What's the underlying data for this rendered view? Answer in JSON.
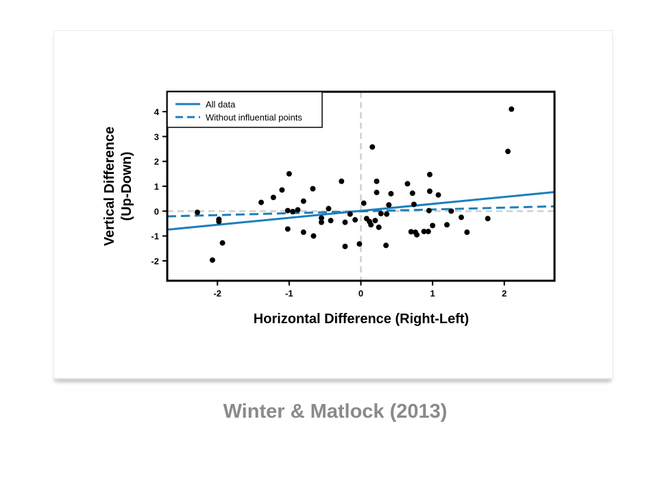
{
  "caption": "Winter & Matlock (2013)",
  "colors": {
    "line": "#1b7fbd",
    "points": "#000000",
    "reference": "#cfcfcf",
    "frame": "#000000",
    "caption": "#8a8a8a"
  },
  "chart_data": {
    "type": "scatter",
    "xlabel": "Horizontal Difference (Right-Left)",
    "ylabel_lines": [
      "Vertical Difference",
      "(Up-Down)"
    ],
    "xlim": [
      -2.7,
      2.7
    ],
    "ylim": [
      -2.8,
      4.8
    ],
    "xticks": [
      -2,
      -1,
      0,
      1,
      2
    ],
    "yticks": [
      -2,
      -1,
      0,
      1,
      2,
      3,
      4
    ],
    "xtick_labels": [
      "-2",
      "-1",
      "0",
      "1",
      "2"
    ],
    "ytick_labels": [
      "-2",
      "-1",
      "0",
      "1",
      "2",
      "3",
      "4"
    ],
    "reference_lines": {
      "x": 0,
      "y": 0,
      "style": "dashed"
    },
    "legend": {
      "position": "top-left",
      "entries": [
        {
          "label": "All data",
          "style": "solid"
        },
        {
          "label": "Without influential points",
          "style": "dashed"
        }
      ]
    },
    "fits": [
      {
        "name": "All data",
        "style": "solid",
        "intercept": 0.01,
        "slope": 0.28
      },
      {
        "name": "Without influential points",
        "style": "dashed",
        "intercept": -0.01,
        "slope": 0.075
      }
    ],
    "points": [
      [
        -2.28,
        -0.05
      ],
      [
        -2.07,
        -1.97
      ],
      [
        -1.98,
        -0.33
      ],
      [
        -1.98,
        -0.42
      ],
      [
        -1.93,
        -1.28
      ],
      [
        -1.39,
        0.35
      ],
      [
        -1.22,
        0.55
      ],
      [
        -1.1,
        0.85
      ],
      [
        -1.0,
        1.5
      ],
      [
        -1.02,
        0.02
      ],
      [
        -1.02,
        -0.72
      ],
      [
        -0.95,
        -0.02
      ],
      [
        -0.88,
        0.05
      ],
      [
        -0.8,
        0.4
      ],
      [
        -0.8,
        -0.85
      ],
      [
        -0.67,
        0.9
      ],
      [
        -0.66,
        -1.0
      ],
      [
        -0.55,
        -0.28
      ],
      [
        -0.55,
        -0.45
      ],
      [
        -0.45,
        0.1
      ],
      [
        -0.42,
        -0.38
      ],
      [
        -0.27,
        1.2
      ],
      [
        -0.22,
        -0.45
      ],
      [
        -0.22,
        -1.42
      ],
      [
        -0.15,
        -0.12
      ],
      [
        -0.08,
        -0.35
      ],
      [
        -0.02,
        -1.32
      ],
      [
        0.04,
        0.32
      ],
      [
        0.08,
        -0.3
      ],
      [
        0.12,
        -0.42
      ],
      [
        0.14,
        -0.55
      ],
      [
        0.16,
        2.58
      ],
      [
        0.2,
        -0.38
      ],
      [
        0.22,
        1.2
      ],
      [
        0.22,
        0.75
      ],
      [
        0.25,
        -0.65
      ],
      [
        0.28,
        -0.1
      ],
      [
        0.36,
        -0.12
      ],
      [
        0.35,
        -1.38
      ],
      [
        0.39,
        0.25
      ],
      [
        0.42,
        0.7
      ],
      [
        0.65,
        1.1
      ],
      [
        0.72,
        0.72
      ],
      [
        0.74,
        0.27
      ],
      [
        0.7,
        -0.83
      ],
      [
        0.76,
        -0.85
      ],
      [
        0.78,
        -0.95
      ],
      [
        0.88,
        -0.82
      ],
      [
        0.94,
        -0.82
      ],
      [
        0.95,
        0.02
      ],
      [
        0.96,
        1.47
      ],
      [
        0.96,
        0.8
      ],
      [
        1.0,
        -0.58
      ],
      [
        1.08,
        0.65
      ],
      [
        1.2,
        -0.55
      ],
      [
        1.26,
        0.0
      ],
      [
        1.4,
        -0.25
      ],
      [
        1.48,
        -0.85
      ],
      [
        1.77,
        -0.3
      ],
      [
        2.05,
        2.4
      ],
      [
        2.1,
        4.1
      ]
    ]
  }
}
